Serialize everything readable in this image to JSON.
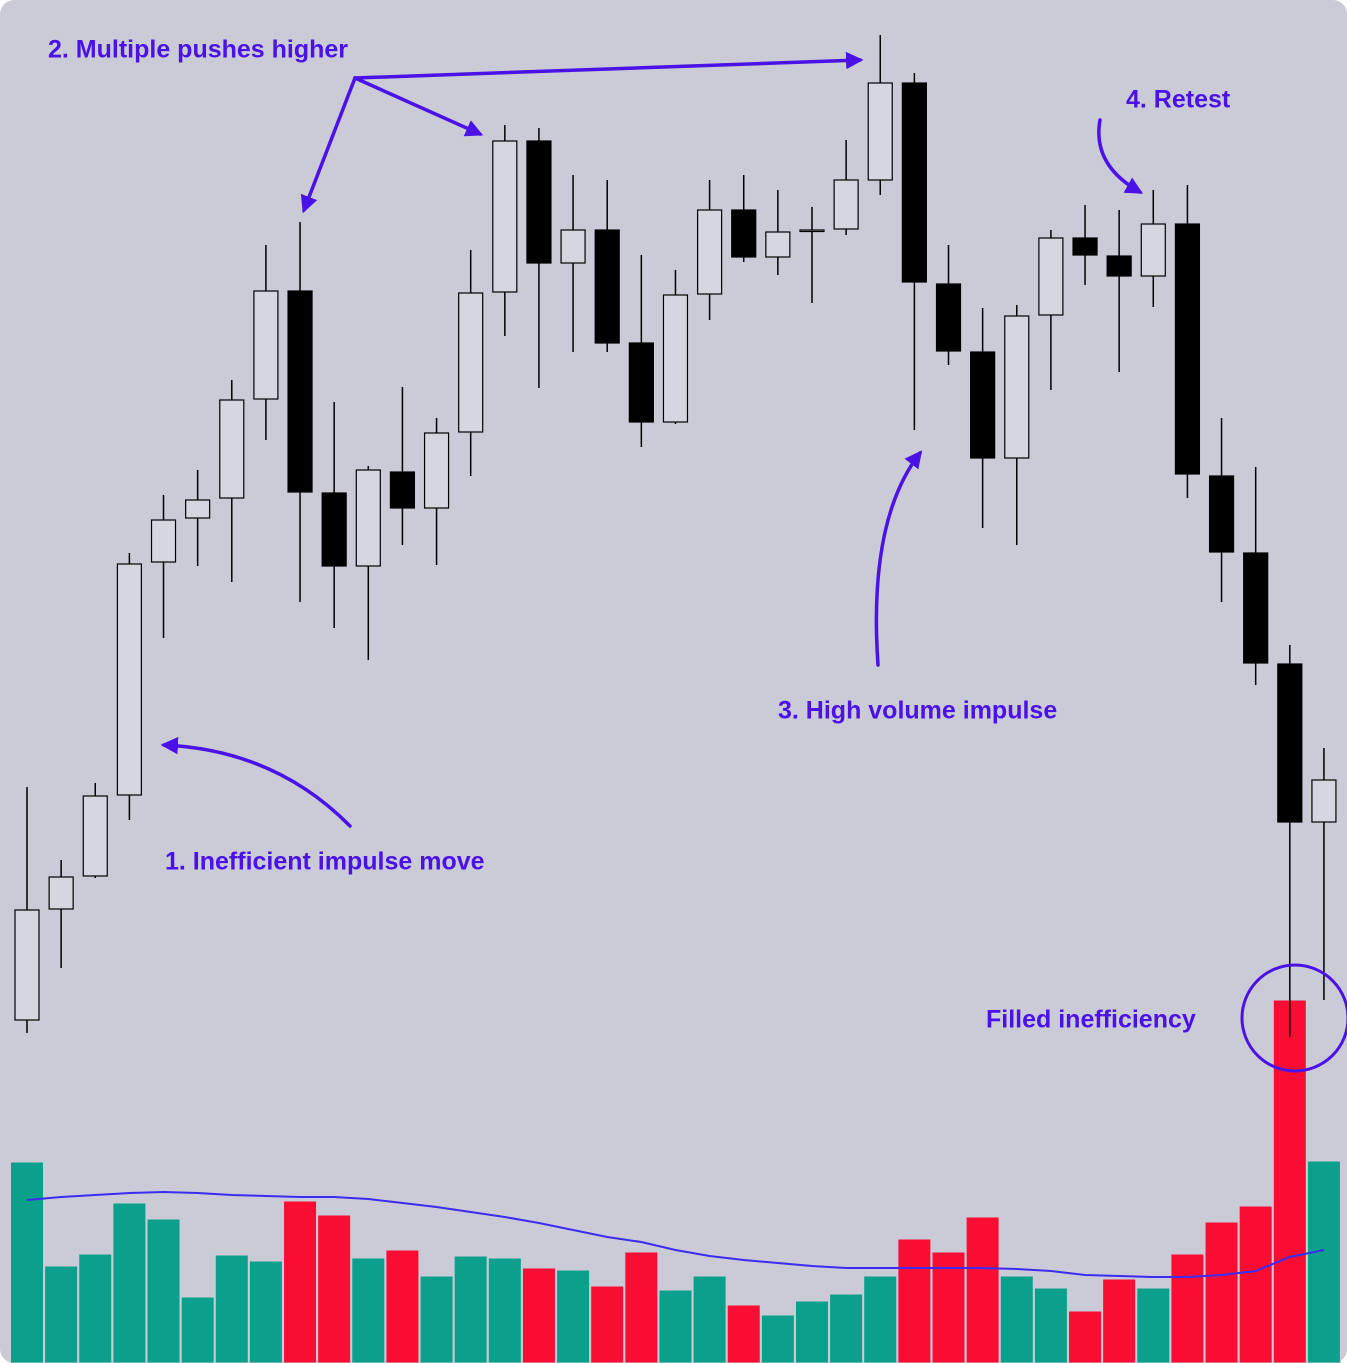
{
  "chart_data": {
    "type": "candlestick",
    "open": [
      80,
      191,
      224,
      305,
      538,
      582,
      602,
      701,
      809,
      607,
      534,
      628,
      592,
      668,
      808,
      959,
      837,
      870,
      757,
      678,
      806,
      890,
      843,
      869,
      871,
      920,
      1017,
      816,
      748,
      642,
      785,
      862,
      844,
      824,
      876,
      624,
      547,
      436,
      278
    ],
    "high": [
      313,
      240,
      317,
      547,
      605,
      630,
      720,
      855,
      878,
      698,
      634,
      713,
      682,
      850,
      975,
      972,
      925,
      920,
      845,
      830,
      920,
      925,
      910,
      893,
      960,
      1065,
      1027,
      855,
      792,
      795,
      870,
      895,
      890,
      910,
      915,
      682,
      633,
      455,
      352
    ],
    "low": [
      67,
      132,
      222,
      280,
      462,
      534,
      518,
      660,
      498,
      472,
      440,
      555,
      535,
      624,
      764,
      712,
      748,
      748,
      653,
      676,
      780,
      838,
      825,
      797,
      865,
      905,
      670,
      735,
      572,
      555,
      710,
      815,
      728,
      793,
      602,
      498,
      415,
      63,
      100
    ],
    "close": [
      190,
      223,
      304,
      536,
      580,
      600,
      700,
      809,
      608,
      534,
      630,
      592,
      667,
      807,
      959,
      837,
      870,
      757,
      678,
      805,
      890,
      843,
      868,
      870,
      920,
      1017,
      818,
      749,
      642,
      784,
      862,
      845,
      824,
      876,
      626,
      548,
      437,
      278,
      320
    ],
    "ylim": [
      60,
      1070
    ],
    "up_color": "none",
    "down_color": "#000000",
    "volume": [
      201,
      97,
      109,
      160,
      144,
      66,
      108,
      102,
      162,
      148,
      105,
      113,
      87,
      107,
      105,
      95,
      93,
      77,
      111,
      73,
      87,
      58,
      48,
      62,
      69,
      87,
      124,
      111,
      146,
      87,
      75,
      52,
      84,
      75,
      109,
      141,
      157,
      363,
      202
    ],
    "volume_colors": [
      "#0aa08c",
      "#0aa08c",
      "#0aa08c",
      "#0aa08c",
      "#0aa08c",
      "#0aa08c",
      "#0aa08c",
      "#0aa08c",
      "#fa0d33",
      "#fa0d33",
      "#0aa08c",
      "#fa0d33",
      "#0aa08c",
      "#0aa08c",
      "#0aa08c",
      "#fa0d33",
      "#0aa08c",
      "#fa0d33",
      "#fa0d33",
      "#0aa08c",
      "#0aa08c",
      "#fa0d33",
      "#0aa08c",
      "#0aa08c",
      "#0aa08c",
      "#0aa08c",
      "#fa0d33",
      "#fa0d33",
      "#fa0d33",
      "#0aa08c",
      "#0aa08c",
      "#fa0d33",
      "#fa0d33",
      "#0aa08c",
      "#fa0d33",
      "#fa0d33",
      "#fa0d33",
      "#fa0d33",
      "#0aa08c"
    ],
    "volume_ma": [
      163,
      166,
      168,
      170,
      171,
      170,
      168,
      167,
      166,
      166,
      164,
      160,
      156,
      151,
      146,
      140,
      133,
      126,
      121,
      113,
      107,
      103,
      100,
      97,
      95,
      95,
      95,
      95,
      95,
      94,
      92,
      88,
      87,
      86,
      86,
      88,
      92,
      106,
      113
    ],
    "volume_ma_color": "#3a2cf0",
    "volume_ylim": [
      0,
      370
    ],
    "annotations": [
      "2. Multiple pushes higher",
      "4. Retest",
      "3. High volume impulse",
      "1. Inefficient impulse move",
      "Filled inefficiency"
    ]
  }
}
